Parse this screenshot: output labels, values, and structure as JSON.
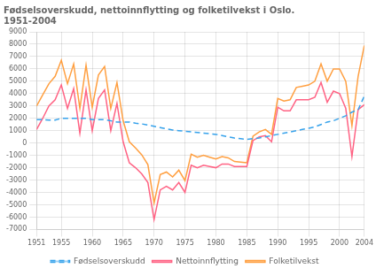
{
  "chart_data": {
    "type": "line",
    "title": [
      "Fødselsoverskudd, nettoinnflytting og folketilvekst i Oslo.",
      "1951-2004"
    ],
    "x": [
      1951,
      1952,
      1953,
      1954,
      1955,
      1956,
      1957,
      1958,
      1959,
      1960,
      1961,
      1962,
      1963,
      1964,
      1965,
      1966,
      1967,
      1968,
      1969,
      1970,
      1971,
      1972,
      1973,
      1974,
      1975,
      1976,
      1977,
      1978,
      1979,
      1980,
      1981,
      1982,
      1983,
      1984,
      1985,
      1986,
      1987,
      1988,
      1989,
      1990,
      1991,
      1992,
      1993,
      1994,
      1995,
      1996,
      1997,
      1998,
      1999,
      2000,
      2001,
      2002,
      2003,
      2004
    ],
    "series": [
      {
        "name": "Fødselsoverskudd",
        "line_style": "dashed",
        "values": [
          1900,
          1900,
          1850,
          1850,
          2000,
          2000,
          2000,
          2000,
          2000,
          1900,
          1900,
          1900,
          1800,
          1700,
          1700,
          1700,
          1600,
          1550,
          1450,
          1350,
          1250,
          1150,
          1050,
          1000,
          950,
          900,
          850,
          800,
          750,
          700,
          600,
          500,
          400,
          350,
          300,
          350,
          400,
          500,
          600,
          700,
          800,
          900,
          1000,
          1100,
          1200,
          1300,
          1500,
          1700,
          1800,
          2000,
          2200,
          2500,
          2700,
          3800
        ]
      },
      {
        "name": "Nettoinnflytting",
        "line_style": "solid",
        "values": [
          1100,
          2000,
          3000,
          3500,
          4700,
          2800,
          4400,
          800,
          4300,
          1000,
          3600,
          4300,
          1000,
          3200,
          100,
          -1600,
          -2000,
          -2500,
          -3200,
          -6200,
          -3800,
          -3500,
          -3800,
          -3200,
          -4000,
          -1800,
          -2000,
          -1800,
          -1900,
          -2000,
          -1700,
          -1700,
          -1900,
          -1900,
          -1900,
          200,
          500,
          600,
          100,
          2900,
          2600,
          2600,
          3500,
          3500,
          3500,
          3700,
          4900,
          3300,
          4200,
          4000,
          2800,
          -1100,
          2700,
          3100
        ]
      },
      {
        "name": "Folketilvekst",
        "line_style": "solid",
        "values": [
          3000,
          3900,
          4800,
          5400,
          6700,
          4800,
          6400,
          2800,
          6300,
          2900,
          5500,
          6200,
          2800,
          4900,
          1800,
          100,
          -400,
          -950,
          -1750,
          -4850,
          -2550,
          -2350,
          -2750,
          -2200,
          -3050,
          -900,
          -1150,
          -1000,
          -1150,
          -1300,
          -1100,
          -1200,
          -1500,
          -1550,
          -1600,
          550,
          900,
          1100,
          700,
          3600,
          3400,
          3500,
          4500,
          4600,
          4700,
          5000,
          6400,
          5000,
          6000,
          6000,
          5000,
          1400,
          5400,
          7900
        ]
      }
    ],
    "xlim": [
      1951,
      2004
    ],
    "xticks": [
      1951,
      1955,
      1960,
      1965,
      1970,
      1975,
      1980,
      1985,
      1990,
      1995,
      2000,
      2004
    ],
    "ylim": [
      -7000,
      9000
    ],
    "yticks": [
      -7000,
      -6000,
      -5000,
      -4000,
      -3000,
      -2000,
      -1000,
      0,
      1000,
      2000,
      3000,
      4000,
      5000,
      6000,
      7000,
      8000,
      9000
    ],
    "grid": true,
    "legend": "bottom"
  }
}
